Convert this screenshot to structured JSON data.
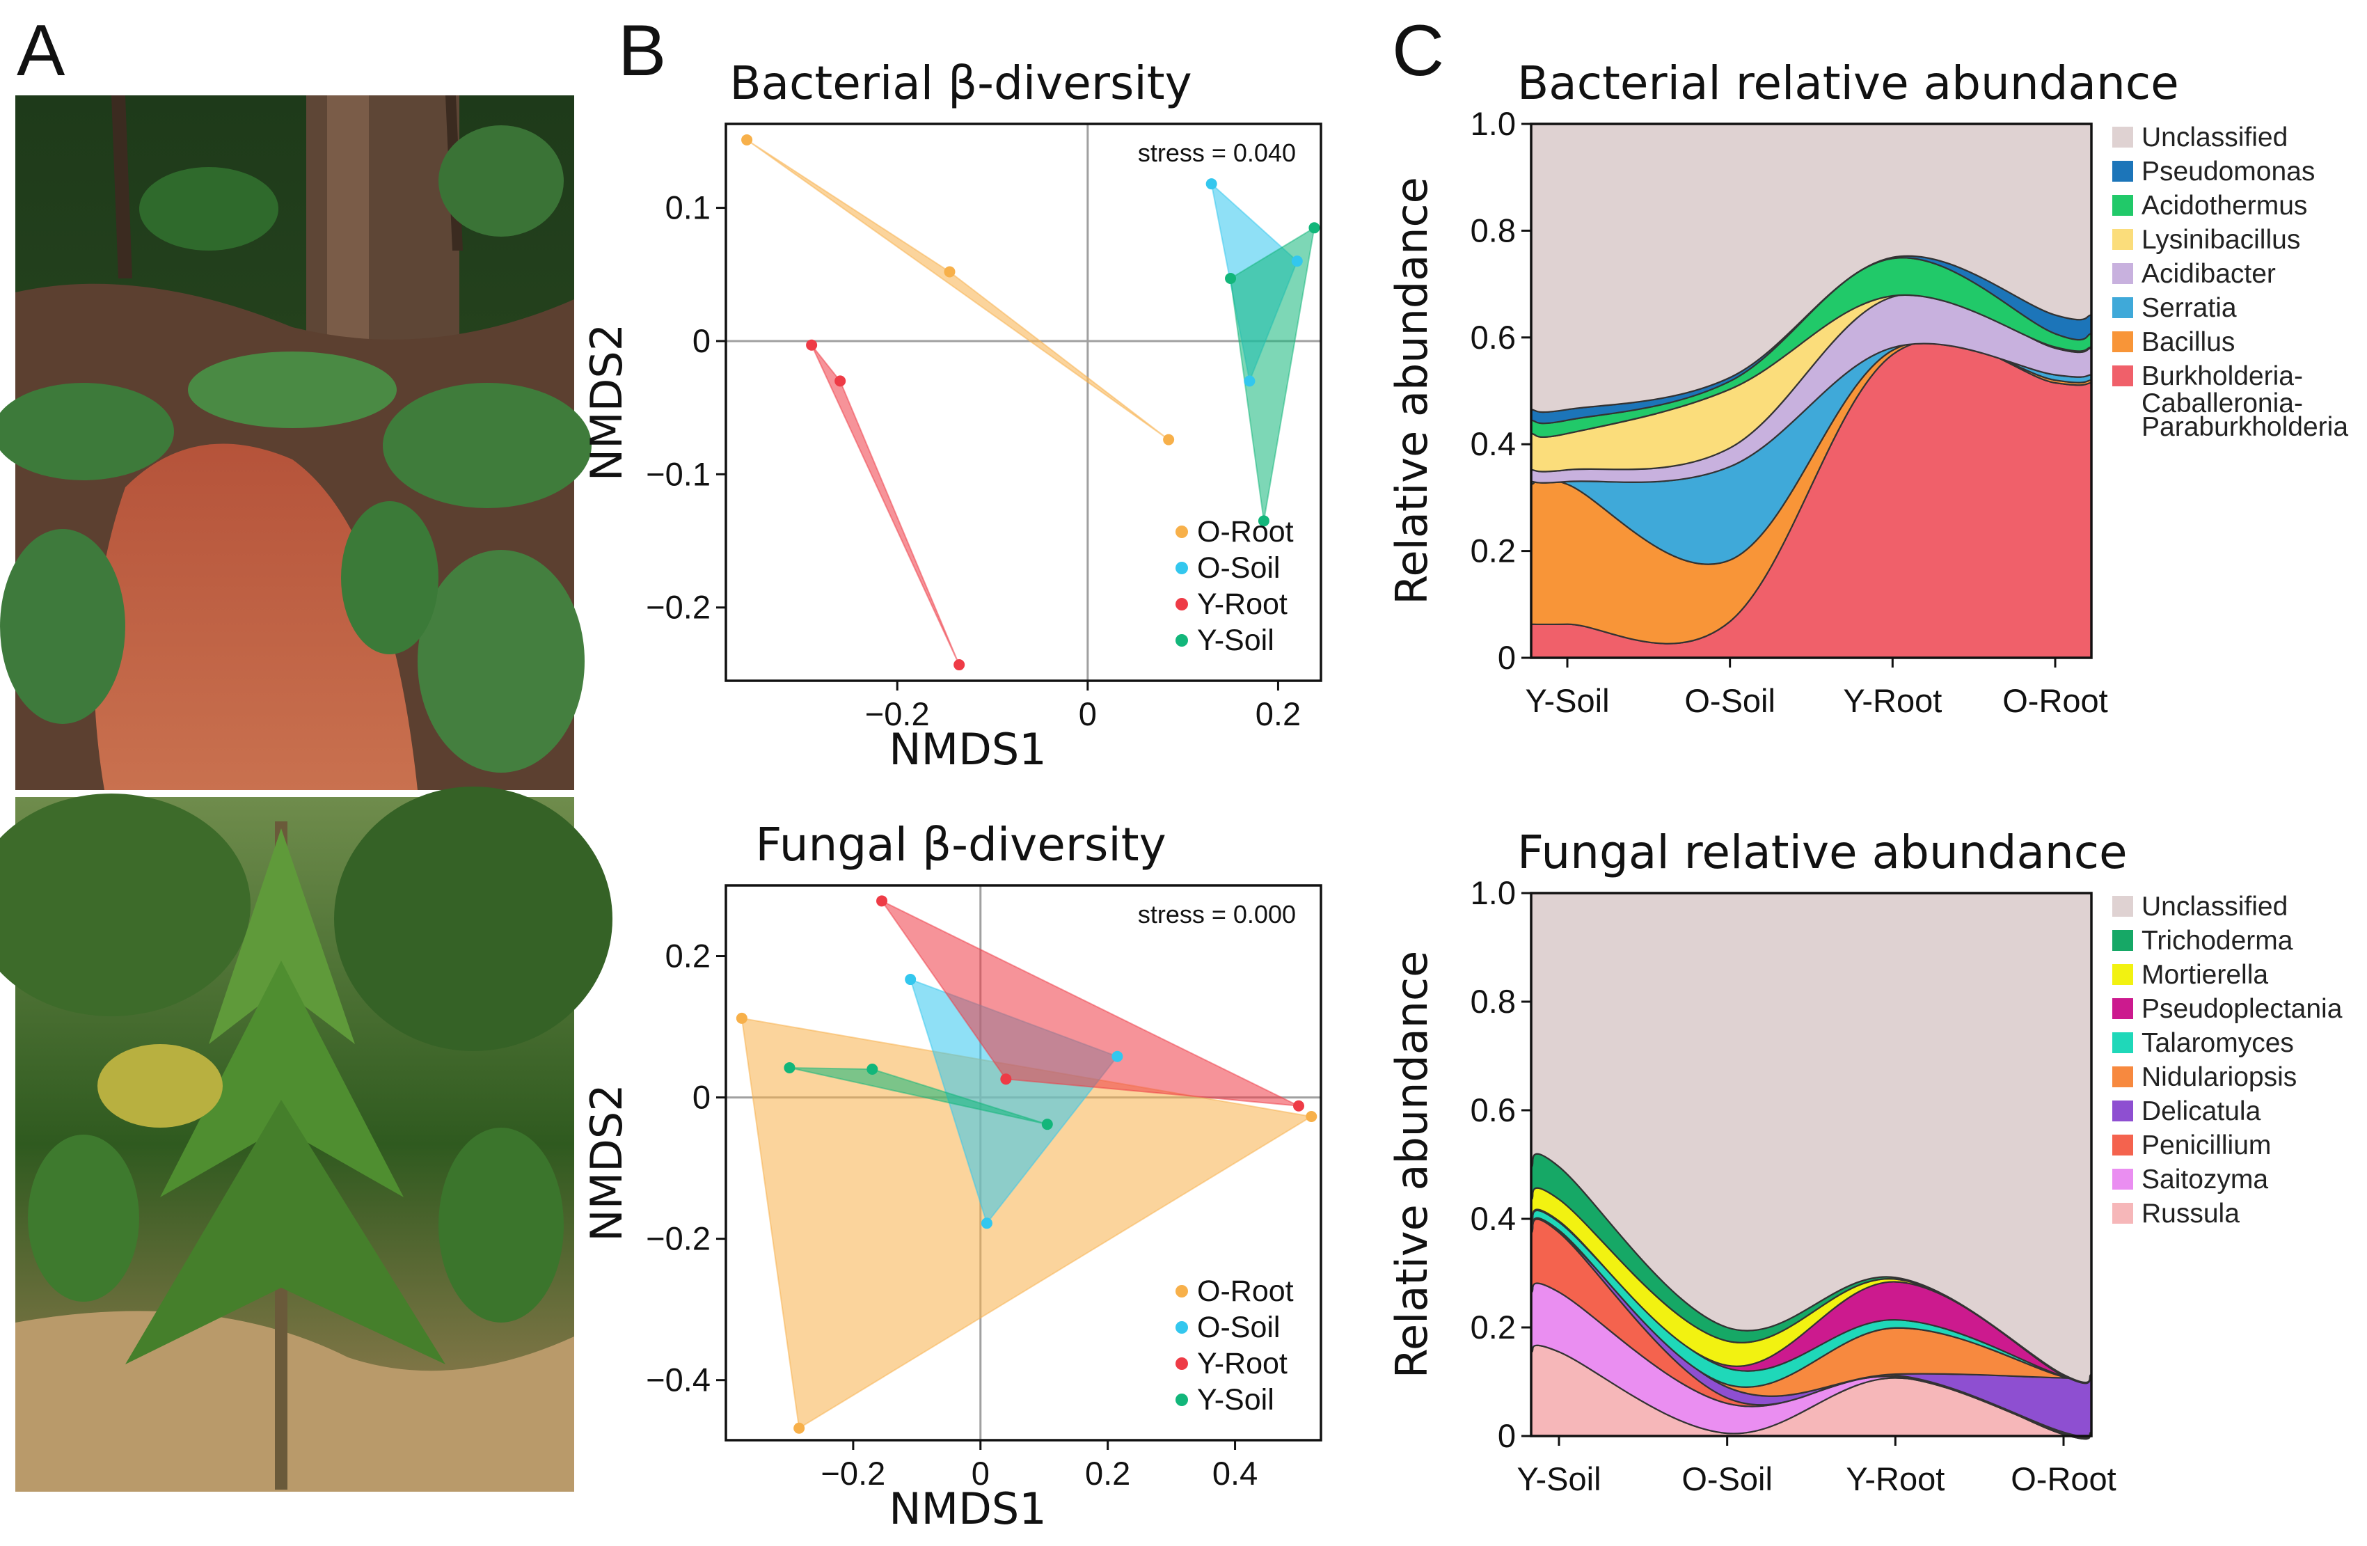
{
  "panel_labels": {
    "a": "A",
    "b": "B",
    "c": "C"
  },
  "photos": {
    "top": "forest-floor-soil-photo",
    "bottom": "young-tree-photo"
  },
  "chart_data": [
    {
      "id": "bac_nmds",
      "type": "scatter",
      "title": "Bacterial β-diversity",
      "xlabel": "NMDS1",
      "ylabel": "NMDS2",
      "xlim": [
        -0.38,
        0.245
      ],
      "ylim": [
        -0.255,
        0.163
      ],
      "xticks": [
        {
          "v": -0.2,
          "t": "−0.2"
        },
        {
          "v": 0,
          "t": "0"
        },
        {
          "v": 0.2,
          "t": "0.2"
        }
      ],
      "yticks": [
        {
          "v": 0.1,
          "t": "0.1"
        },
        {
          "v": 0,
          "t": "0"
        },
        {
          "v": -0.1,
          "t": "−0.1"
        },
        {
          "v": -0.2,
          "t": "−0.2"
        }
      ],
      "stress": "stress = 0.040",
      "series": [
        {
          "name": "O-Root",
          "color": "#f7b04a",
          "points": [
            [
              -0.358,
              0.151
            ],
            [
              -0.145,
              0.052
            ],
            [
              0.085,
              -0.074
            ]
          ]
        },
        {
          "name": "O-Soil",
          "color": "#33c7ee",
          "points": [
            [
              0.13,
              0.118
            ],
            [
              0.22,
              0.06
            ],
            [
              0.17,
              -0.03
            ]
          ]
        },
        {
          "name": "Y-Root",
          "color": "#ee3b46",
          "points": [
            [
              -0.29,
              -0.003
            ],
            [
              -0.26,
              -0.03
            ],
            [
              -0.135,
              -0.243
            ]
          ]
        },
        {
          "name": "Y-Soil",
          "color": "#12b67a",
          "points": [
            [
              0.238,
              0.085
            ],
            [
              0.15,
              0.047
            ],
            [
              0.185,
              -0.135
            ]
          ]
        }
      ]
    },
    {
      "id": "fun_nmds",
      "type": "scatter",
      "title": "Fungal β-diversity",
      "xlabel": "NMDS1",
      "ylabel": "NMDS2",
      "xlim": [
        -0.4,
        0.535
      ],
      "ylim": [
        -0.485,
        0.3
      ],
      "xticks": [
        {
          "v": -0.2,
          "t": "−0.2"
        },
        {
          "v": 0,
          "t": "0"
        },
        {
          "v": 0.2,
          "t": "0.2"
        },
        {
          "v": 0.4,
          "t": "0.4"
        }
      ],
      "yticks": [
        {
          "v": 0.2,
          "t": "0.2"
        },
        {
          "v": 0,
          "t": "0"
        },
        {
          "v": -0.2,
          "t": "−0.2"
        },
        {
          "v": -0.4,
          "t": "−0.4"
        }
      ],
      "stress": "stress = 0.000",
      "series": [
        {
          "name": "O-Root",
          "color": "#f7b04a",
          "points": [
            [
              -0.375,
              0.112
            ],
            [
              -0.285,
              -0.468
            ],
            [
              0.52,
              -0.027
            ]
          ]
        },
        {
          "name": "O-Soil",
          "color": "#33c7ee",
          "points": [
            [
              -0.11,
              0.167
            ],
            [
              0.215,
              0.058
            ],
            [
              0.01,
              -0.178
            ]
          ]
        },
        {
          "name": "Y-Root",
          "color": "#ee3b46",
          "points": [
            [
              -0.155,
              0.278
            ],
            [
              0.04,
              0.026
            ],
            [
              0.5,
              -0.012
            ]
          ]
        },
        {
          "name": "Y-Soil",
          "color": "#12b67a",
          "points": [
            [
              -0.3,
              0.042
            ],
            [
              -0.17,
              0.04
            ],
            [
              0.105,
              -0.038
            ]
          ]
        }
      ]
    },
    {
      "id": "bac_abund",
      "type": "area",
      "title": "Bacterial relative abundance",
      "ylabel": "Relative abundance",
      "categories": [
        "Y-Soil",
        "O-Soil",
        "Y-Root",
        "O-Root"
      ],
      "ylim": [
        0,
        1.0
      ],
      "yticks": [
        {
          "v": 0,
          "t": "0"
        },
        {
          "v": 0.2,
          "t": "0.2"
        },
        {
          "v": 0.4,
          "t": "0.4"
        },
        {
          "v": 0.6,
          "t": "0.6"
        },
        {
          "v": 0.8,
          "t": "0.8"
        },
        {
          "v": 1.0,
          "t": "1.0"
        }
      ],
      "series": [
        {
          "name": "Burkholderia-Caballeronia-Paraburkholderia",
          "color": "#f0606a",
          "values": [
            0.063,
            0.068,
            0.568,
            0.515
          ]
        },
        {
          "name": "Bacillus",
          "color": "#f89538",
          "values": [
            0.262,
            0.115,
            0.008,
            0.005
          ]
        },
        {
          "name": "Serratia",
          "color": "#3fa9d9",
          "values": [
            0.005,
            0.175,
            0.005,
            0.01
          ]
        },
        {
          "name": "Acidibacter",
          "color": "#c8b1de",
          "values": [
            0.022,
            0.035,
            0.095,
            0.05
          ]
        },
        {
          "name": "Lysinibacillus",
          "color": "#fbdd7b",
          "values": [
            0.068,
            0.11,
            0.002,
            0.002
          ]
        },
        {
          "name": "Acidothermus",
          "color": "#21c969",
          "values": [
            0.025,
            0.015,
            0.07,
            0.025
          ]
        },
        {
          "name": "Pseudomonas",
          "color": "#1c75b9",
          "values": [
            0.02,
            0.007,
            0.002,
            0.035
          ]
        },
        {
          "name": "Unclassified",
          "color": "#dfd2d2",
          "values": [
            0.535,
            0.475,
            0.25,
            0.358
          ]
        }
      ],
      "legend": [
        {
          "name": "Unclassified",
          "color": "#dfd2d2"
        },
        {
          "name": "Pseudomonas",
          "color": "#1c75b9"
        },
        {
          "name": "Acidothermus",
          "color": "#21c969"
        },
        {
          "name": "Lysinibacillus",
          "color": "#fbdd7b"
        },
        {
          "name": "Acidibacter",
          "color": "#c8b1de"
        },
        {
          "name": "Serratia",
          "color": "#3fa9d9"
        },
        {
          "name": "Bacillus",
          "color": "#f89538"
        },
        {
          "name": "Burkholderia-",
          "color": "#f0606a",
          "extra": [
            "Caballeronia-",
            "Paraburkholderia"
          ]
        }
      ]
    },
    {
      "id": "fun_abund",
      "type": "area",
      "title": "Fungal relative abundance",
      "ylabel": "Relative abundance",
      "categories": [
        "Y-Soil",
        "O-Soil",
        "Y-Root",
        "O-Root"
      ],
      "ylim": [
        0,
        1.0
      ],
      "yticks": [
        {
          "v": 0,
          "t": "0"
        },
        {
          "v": 0.2,
          "t": "0.2"
        },
        {
          "v": 0.4,
          "t": "0.4"
        },
        {
          "v": 0.6,
          "t": "0.6"
        },
        {
          "v": 0.8,
          "t": "0.8"
        },
        {
          "v": 1.0,
          "t": "1.0"
        }
      ],
      "series": [
        {
          "name": "Russula",
          "color": "#f6b7b9",
          "values": [
            0.155,
            0.005,
            0.107,
            0.003
          ]
        },
        {
          "name": "Saitozyma",
          "color": "#ea8ef1",
          "values": [
            0.11,
            0.055,
            0.002,
            0.002
          ]
        },
        {
          "name": "Penicillium",
          "color": "#f4634e",
          "values": [
            0.11,
            0.01,
            0.003,
            0.002
          ]
        },
        {
          "name": "Delicatula",
          "color": "#8e4fd1",
          "values": [
            0.002,
            0.02,
            0.002,
            0.1
          ]
        },
        {
          "name": "Nidulariopsis",
          "color": "#f7893f",
          "values": [
            0.002,
            0.005,
            0.085,
            0.002
          ]
        },
        {
          "name": "Talaromyces",
          "color": "#1fd8b9",
          "values": [
            0.015,
            0.03,
            0.015,
            0.001
          ]
        },
        {
          "name": "Pseudoplectania",
          "color": "#cc1a8e",
          "values": [
            0.002,
            0.005,
            0.07,
            0.001
          ]
        },
        {
          "name": "Mortierella",
          "color": "#f2f211",
          "values": [
            0.04,
            0.045,
            0.005,
            0.001
          ]
        },
        {
          "name": "Trichoderma",
          "color": "#16a866",
          "values": [
            0.06,
            0.025,
            0.003,
            0.001
          ]
        },
        {
          "name": "Unclassified",
          "color": "#dfd2d2",
          "values": [
            0.504,
            0.8,
            0.708,
            0.887
          ]
        }
      ],
      "legend": [
        {
          "name": "Unclassified",
          "color": "#dfd2d2"
        },
        {
          "name": "Trichoderma",
          "color": "#16a866"
        },
        {
          "name": "Mortierella",
          "color": "#f2f211"
        },
        {
          "name": "Pseudoplectania",
          "color": "#cc1a8e"
        },
        {
          "name": "Talaromyces",
          "color": "#1fd8b9"
        },
        {
          "name": "Nidulariopsis",
          "color": "#f7893f"
        },
        {
          "name": "Delicatula",
          "color": "#8e4fd1"
        },
        {
          "name": "Penicillium",
          "color": "#f4634e"
        },
        {
          "name": "Saitozyma",
          "color": "#ea8ef1"
        },
        {
          "name": "Russula",
          "color": "#f6b7b9"
        }
      ]
    }
  ]
}
